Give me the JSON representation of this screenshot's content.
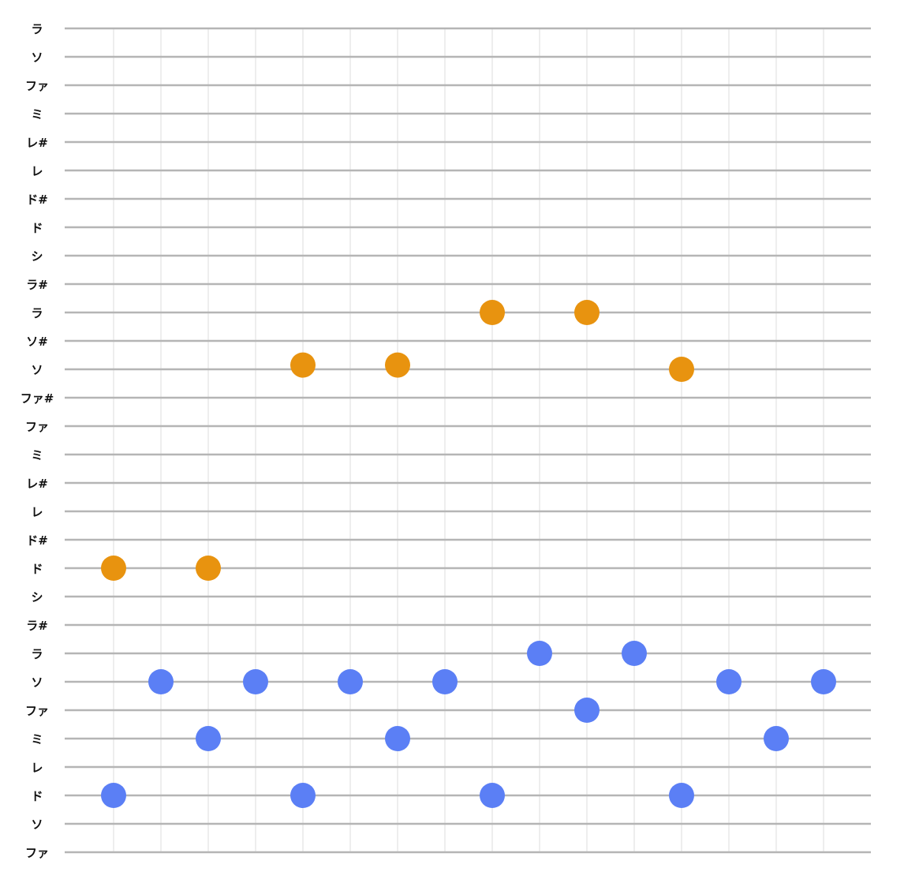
{
  "chart_data": {
    "type": "scatter",
    "title": "",
    "xlabel": "",
    "ylabel": "",
    "x_count": 16,
    "grid": true,
    "row_labels": [
      "ファ",
      "ソ",
      "ド",
      "レ",
      "ミ",
      "ファ",
      "ソ",
      "ラ",
      "ラ#",
      "シ",
      "ド",
      "ド#",
      "レ",
      "レ#",
      "ミ",
      "ファ",
      "ファ#",
      "ソ",
      "ソ#",
      "ラ",
      "ラ#",
      "シ",
      "ド",
      "ド#",
      "レ",
      "レ#",
      "ミ",
      "ファ",
      "ソ",
      "ラ"
    ],
    "series": [
      {
        "color": "#E8930F",
        "points": [
          {
            "x": 1,
            "y": 10
          },
          {
            "x": 3,
            "y": 10
          },
          {
            "x": 5,
            "y": 17.15
          },
          {
            "x": 7,
            "y": 17.15
          },
          {
            "x": 9,
            "y": 19
          },
          {
            "x": 11,
            "y": 19
          },
          {
            "x": 13,
            "y": 17
          }
        ]
      },
      {
        "color": "#5B7FF5",
        "points": [
          {
            "x": 1,
            "y": 2
          },
          {
            "x": 2,
            "y": 6
          },
          {
            "x": 3,
            "y": 4
          },
          {
            "x": 4,
            "y": 6
          },
          {
            "x": 5,
            "y": 2
          },
          {
            "x": 6,
            "y": 6
          },
          {
            "x": 7,
            "y": 4
          },
          {
            "x": 8,
            "y": 6
          },
          {
            "x": 9,
            "y": 2
          },
          {
            "x": 10,
            "y": 7
          },
          {
            "x": 11,
            "y": 5
          },
          {
            "x": 12,
            "y": 7
          },
          {
            "x": 13,
            "y": 2
          },
          {
            "x": 14,
            "y": 6
          },
          {
            "x": 15,
            "y": 4
          },
          {
            "x": 16,
            "y": 6
          }
        ]
      }
    ]
  }
}
